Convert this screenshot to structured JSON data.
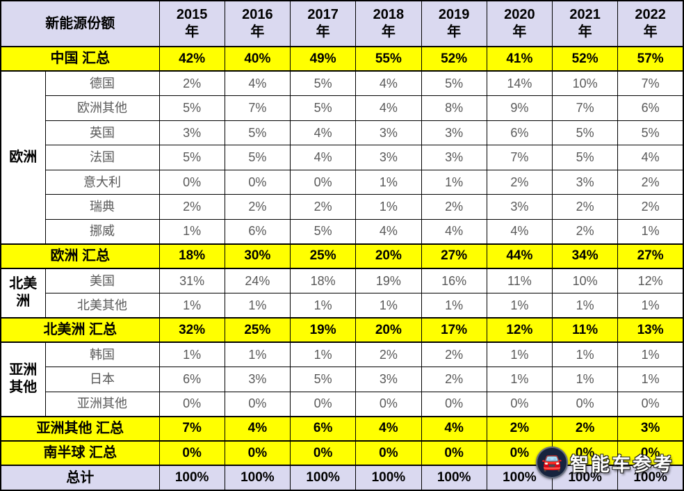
{
  "chart_data": {
    "type": "table",
    "title": "新能源份额",
    "unit": "%",
    "columns": [
      "2015\n年",
      "2016\n年",
      "2017\n年",
      "2018\n年",
      "2019\n年",
      "2020\n年",
      "2021\n年",
      "2022\n年"
    ],
    "rows": [
      {
        "kind": "summary",
        "label": "中国 汇总",
        "values": [
          "42%",
          "40%",
          "49%",
          "55%",
          "52%",
          "41%",
          "52%",
          "57%"
        ]
      },
      {
        "kind": "data",
        "group": "欧洲",
        "group_span": 7,
        "label": "德国",
        "values": [
          "2%",
          "4%",
          "5%",
          "4%",
          "5%",
          "14%",
          "10%",
          "7%"
        ]
      },
      {
        "kind": "data",
        "label": "欧洲其他",
        "values": [
          "5%",
          "7%",
          "5%",
          "4%",
          "8%",
          "9%",
          "7%",
          "6%"
        ]
      },
      {
        "kind": "data",
        "label": "英国",
        "values": [
          "3%",
          "5%",
          "4%",
          "3%",
          "3%",
          "6%",
          "5%",
          "5%"
        ]
      },
      {
        "kind": "data",
        "label": "法国",
        "values": [
          "5%",
          "5%",
          "4%",
          "3%",
          "3%",
          "7%",
          "5%",
          "4%"
        ]
      },
      {
        "kind": "data",
        "label": "意大利",
        "values": [
          "0%",
          "0%",
          "0%",
          "1%",
          "1%",
          "2%",
          "3%",
          "2%"
        ]
      },
      {
        "kind": "data",
        "label": "瑞典",
        "values": [
          "2%",
          "2%",
          "2%",
          "1%",
          "2%",
          "3%",
          "2%",
          "2%"
        ]
      },
      {
        "kind": "data",
        "label": "挪威",
        "values": [
          "1%",
          "6%",
          "5%",
          "4%",
          "4%",
          "4%",
          "2%",
          "1%"
        ]
      },
      {
        "kind": "summary",
        "label": "欧洲 汇总",
        "values": [
          "18%",
          "30%",
          "25%",
          "20%",
          "27%",
          "44%",
          "34%",
          "27%"
        ]
      },
      {
        "kind": "data",
        "group": "北美\n洲",
        "group_span": 2,
        "label": "美国",
        "values": [
          "31%",
          "24%",
          "18%",
          "19%",
          "16%",
          "11%",
          "10%",
          "12%"
        ]
      },
      {
        "kind": "data",
        "label": "北美其他",
        "values": [
          "1%",
          "1%",
          "1%",
          "1%",
          "1%",
          "1%",
          "1%",
          "1%"
        ]
      },
      {
        "kind": "summary",
        "label": "北美洲 汇总",
        "values": [
          "32%",
          "25%",
          "19%",
          "20%",
          "17%",
          "12%",
          "11%",
          "13%"
        ]
      },
      {
        "kind": "data",
        "group": "亚洲\n其他",
        "group_span": 3,
        "label": "韩国",
        "values": [
          "1%",
          "1%",
          "1%",
          "2%",
          "2%",
          "1%",
          "1%",
          "1%"
        ]
      },
      {
        "kind": "data",
        "label": "日本",
        "values": [
          "6%",
          "3%",
          "5%",
          "3%",
          "2%",
          "1%",
          "1%",
          "1%"
        ]
      },
      {
        "kind": "data",
        "label": "亚洲其他",
        "values": [
          "0%",
          "0%",
          "0%",
          "0%",
          "0%",
          "0%",
          "0%",
          "0%"
        ]
      },
      {
        "kind": "summary",
        "label": "亚洲其他 汇总",
        "values": [
          "7%",
          "4%",
          "6%",
          "4%",
          "4%",
          "2%",
          "2%",
          "3%"
        ]
      },
      {
        "kind": "summary",
        "label": "南半球 汇总",
        "values": [
          "0%",
          "0%",
          "0%",
          "0%",
          "0%",
          "0%",
          "0%",
          "0%"
        ]
      },
      {
        "kind": "total",
        "label": "总计",
        "values": [
          "100%",
          "100%",
          "100%",
          "100%",
          "100%",
          "100%",
          "100%",
          "100%"
        ]
      }
    ]
  },
  "colors": {
    "header_bg": "#dad9f0",
    "summary_bg": "#ffff00",
    "total_bg": "#dad9f0",
    "border": "#000000",
    "value_text": "#595959"
  },
  "watermark": {
    "text": "智能车参考",
    "icon": "car-logo-icon"
  }
}
